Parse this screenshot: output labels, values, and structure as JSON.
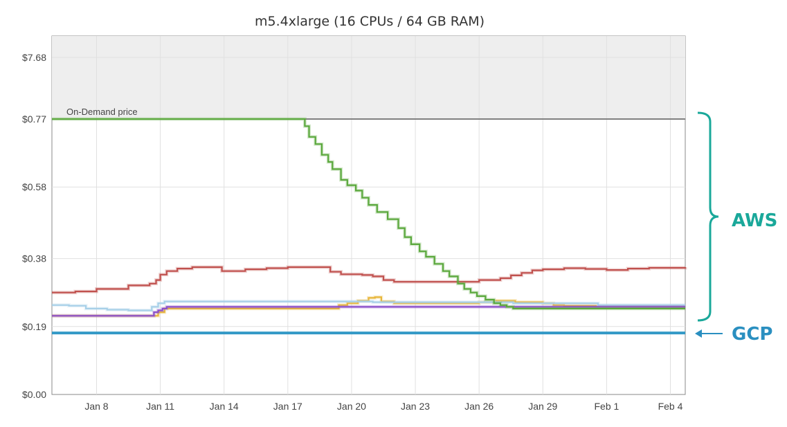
{
  "chart_data": {
    "type": "line",
    "title": "m5.4xlarge (16 CPUs / 64 GB RAM)",
    "xlabel": "",
    "ylabel": "",
    "x_ticks": [
      "Jan 8",
      "Jan 11",
      "Jan 14",
      "Jan 17",
      "Jan 20",
      "Jan 23",
      "Jan 26",
      "Jan 29",
      "Feb 1",
      "Feb 4"
    ],
    "xlim": [
      "Jan 5.9",
      "Feb 4.7"
    ],
    "y_ticks": [
      {
        "value": 0.0,
        "label": "$0.00"
      },
      {
        "value": 0.19,
        "label": "$0.19"
      },
      {
        "value": 0.38,
        "label": "$0.38"
      },
      {
        "value": 0.58,
        "label": "$0.58"
      },
      {
        "value": 0.77,
        "label": "$0.77"
      },
      {
        "value": 7.68,
        "label": "$7.68"
      }
    ],
    "y_scale": "piecewise linear: $0.00–$0.77 linear, $0.77–$7.68 compressed shaded band",
    "grid": true,
    "annotations": {
      "on_demand_label": "On-Demand price",
      "on_demand_value": 0.77,
      "aws_label": "AWS",
      "gcp_label": "GCP",
      "aws_color": "#1aa89a",
      "gcp_color": "#2a8fc0"
    },
    "series": [
      {
        "color": "#7f7f7f",
        "x": [
          5.9,
          35.7
        ],
        "y": [
          0.77,
          0.77
        ]
      },
      {
        "color": "#3399c6",
        "x": [
          5.9,
          35.7
        ],
        "y": [
          0.172,
          0.172
        ]
      },
      {
        "color": "#5aa83c",
        "x": [
          5.9,
          17.7,
          17.8,
          18.0,
          18.3,
          18.6,
          18.9,
          19.1,
          19.5,
          19.8,
          20.2,
          20.5,
          20.8,
          21.2,
          21.7,
          22.2,
          22.5,
          22.8,
          23.2,
          23.5,
          23.9,
          24.3,
          24.6,
          25.0,
          25.3,
          25.6,
          25.9,
          26.3,
          26.7,
          27.0,
          27.3,
          27.6,
          35.7
        ],
        "y": [
          0.77,
          0.77,
          0.75,
          0.72,
          0.7,
          0.67,
          0.65,
          0.63,
          0.6,
          0.585,
          0.57,
          0.55,
          0.53,
          0.51,
          0.49,
          0.465,
          0.44,
          0.42,
          0.4,
          0.385,
          0.365,
          0.345,
          0.33,
          0.31,
          0.295,
          0.285,
          0.275,
          0.265,
          0.255,
          0.25,
          0.245,
          0.24,
          0.24
        ]
      },
      {
        "color": "#c0504d",
        "x": [
          5.9,
          7.0,
          8.0,
          9.5,
          10.5,
          10.8,
          11.0,
          11.3,
          11.8,
          12.5,
          13.5,
          13.9,
          15.0,
          16.0,
          17.0,
          18.0,
          19.0,
          19.5,
          20.5,
          21.0,
          21.5,
          22.0,
          23.0,
          24.0,
          25.0,
          25.5,
          26.0,
          27.0,
          27.5,
          28.0,
          28.5,
          29.0,
          30.0,
          31.0,
          32.0,
          33.0,
          34.0,
          35.7
        ],
        "y": [
          0.285,
          0.288,
          0.295,
          0.305,
          0.31,
          0.32,
          0.335,
          0.345,
          0.352,
          0.356,
          0.356,
          0.345,
          0.35,
          0.353,
          0.356,
          0.356,
          0.343,
          0.336,
          0.334,
          0.33,
          0.32,
          0.315,
          0.315,
          0.315,
          0.315,
          0.315,
          0.32,
          0.325,
          0.333,
          0.34,
          0.347,
          0.35,
          0.353,
          0.351,
          0.348,
          0.352,
          0.354,
          0.356
        ]
      },
      {
        "color": "#e8b63a",
        "x": [
          5.9,
          10.5,
          10.9,
          11.2,
          19.0,
          19.4,
          19.8,
          20.3,
          20.8,
          21.1,
          21.4,
          22.0,
          26.0,
          26.8,
          27.4,
          27.7,
          29.0,
          29.5,
          30.0,
          31.5,
          35.7
        ],
        "y": [
          0.22,
          0.22,
          0.23,
          0.24,
          0.24,
          0.25,
          0.255,
          0.262,
          0.27,
          0.272,
          0.26,
          0.255,
          0.258,
          0.262,
          0.262,
          0.258,
          0.255,
          0.25,
          0.248,
          0.245,
          0.245
        ]
      },
      {
        "color": "#a7d0e8",
        "x": [
          5.9,
          6.7,
          7.5,
          8.5,
          9.5,
          10.2,
          10.6,
          10.9,
          11.2,
          19.0,
          20.0,
          21.0,
          27.4,
          27.6,
          30.0,
          31.6,
          35.7
        ],
        "y": [
          0.25,
          0.248,
          0.24,
          0.237,
          0.235,
          0.235,
          0.245,
          0.255,
          0.26,
          0.26,
          0.26,
          0.258,
          0.258,
          0.255,
          0.255,
          0.25,
          0.25
        ]
      },
      {
        "color": "#8b4fc9",
        "x": [
          5.9,
          8.0,
          9.0,
          10.0,
          10.5,
          10.7,
          10.9,
          11.1,
          11.3,
          19.0,
          35.7
        ],
        "y": [
          0.22,
          0.22,
          0.22,
          0.22,
          0.22,
          0.23,
          0.235,
          0.24,
          0.245,
          0.245,
          0.245
        ]
      }
    ]
  }
}
